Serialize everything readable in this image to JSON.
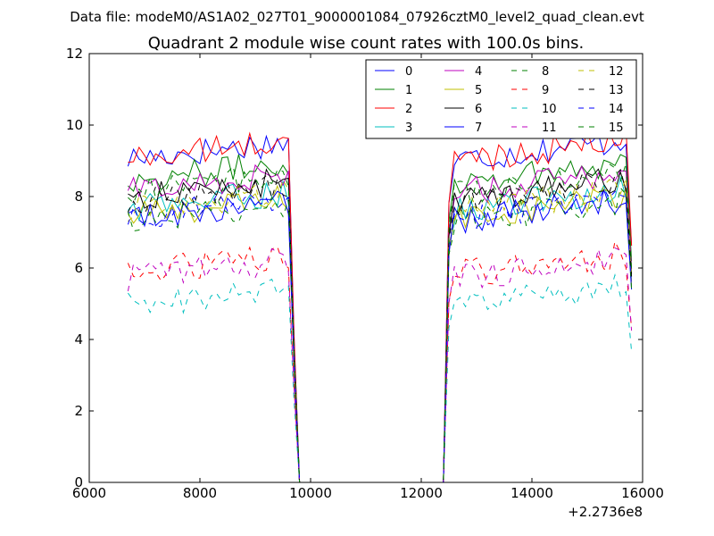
{
  "chart_data": {
    "type": "line",
    "suptitle": "Data file: modeM0/AS1A02_027T01_9000001084_07926cztM0_level2_quad_clean.evt",
    "title": "Quadrant 2 module wise count rates with 100.0s bins.",
    "xlabel": "",
    "ylabel": "",
    "x_offset_label": "+2.2736e8",
    "xlim": [
      6000,
      16000
    ],
    "ylim": [
      0,
      12
    ],
    "xticks": [
      6000,
      8000,
      10000,
      12000,
      14000,
      16000
    ],
    "xtick_labels": [
      "6000",
      "8000",
      "10000",
      "12000",
      "14000",
      "16000"
    ],
    "yticks": [
      0,
      2,
      4,
      6,
      8,
      10,
      12
    ],
    "ytick_labels": [
      "0",
      "2",
      "4",
      "6",
      "8",
      "10",
      "12"
    ],
    "legend": {
      "position": "top-right",
      "columns": 4
    },
    "grid": false,
    "segments": {
      "seg1_x": [
        6700,
        9700
      ],
      "gap_x": [
        9800,
        12400
      ],
      "seg2_x": [
        12500,
        15800
      ],
      "bin_width": 100
    },
    "series": [
      {
        "name": "0",
        "color": "#0000ff",
        "dashed": false,
        "level": 9.2
      },
      {
        "name": "1",
        "color": "#008000",
        "dashed": false,
        "level": 8.6
      },
      {
        "name": "2",
        "color": "#ff0000",
        "dashed": false,
        "level": 9.2
      },
      {
        "name": "3",
        "color": "#00bfbf",
        "dashed": false,
        "level": 7.8
      },
      {
        "name": "4",
        "color": "#bf00bf",
        "dashed": false,
        "level": 8.3
      },
      {
        "name": "5",
        "color": "#bfbf00",
        "dashed": false,
        "level": 7.6
      },
      {
        "name": "6",
        "color": "#000000",
        "dashed": false,
        "level": 8.1
      },
      {
        "name": "7",
        "color": "#0000ff",
        "dashed": false,
        "level": 7.5
      },
      {
        "name": "8",
        "color": "#008000",
        "dashed": true,
        "level": 7.5
      },
      {
        "name": "9",
        "color": "#ff0000",
        "dashed": true,
        "level": 6.0
      },
      {
        "name": "10",
        "color": "#00bfbf",
        "dashed": true,
        "level": 5.1
      },
      {
        "name": "11",
        "color": "#bf00bf",
        "dashed": true,
        "level": 5.9
      },
      {
        "name": "12",
        "color": "#bfbf00",
        "dashed": true,
        "level": 7.8
      },
      {
        "name": "13",
        "color": "#000000",
        "dashed": true,
        "level": 8.0
      },
      {
        "name": "14",
        "color": "#0000ff",
        "dashed": true,
        "level": 7.6
      },
      {
        "name": "15",
        "color": "#008000",
        "dashed": true,
        "level": 8.3
      }
    ]
  }
}
